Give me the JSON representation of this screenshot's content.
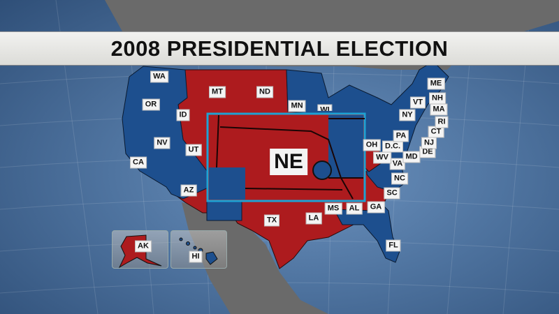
{
  "title": "2008 PRESIDENTIAL ELECTION",
  "colors": {
    "democrat": "#1d4f8e",
    "republican": "#ad1b1e",
    "inset_border": "#1ea2d3",
    "land": "#6a6a6a"
  },
  "inset": {
    "label": "NE",
    "party": "republican",
    "district_party": "democrat"
  },
  "states": [
    {
      "abbr": "WA",
      "party": "democrat"
    },
    {
      "abbr": "OR",
      "party": "democrat"
    },
    {
      "abbr": "ID",
      "party": "republican"
    },
    {
      "abbr": "MT",
      "party": "republican"
    },
    {
      "abbr": "ND",
      "party": "republican"
    },
    {
      "abbr": "MN",
      "party": "democrat"
    },
    {
      "abbr": "WI",
      "party": "democrat"
    },
    {
      "abbr": "NV",
      "party": "democrat"
    },
    {
      "abbr": "UT",
      "party": "republican"
    },
    {
      "abbr": "CA",
      "party": "democrat"
    },
    {
      "abbr": "AZ",
      "party": "republican"
    },
    {
      "abbr": "TX",
      "party": "republican"
    },
    {
      "abbr": "LA",
      "party": "republican"
    },
    {
      "abbr": "MS",
      "party": "republican"
    },
    {
      "abbr": "AL",
      "party": "republican"
    },
    {
      "abbr": "GA",
      "party": "republican"
    },
    {
      "abbr": "SC",
      "party": "republican"
    },
    {
      "abbr": "FL",
      "party": "democrat"
    },
    {
      "abbr": "NC",
      "party": "democrat"
    },
    {
      "abbr": "VA",
      "party": "democrat"
    },
    {
      "abbr": "WV",
      "party": "republican"
    },
    {
      "abbr": "OH",
      "party": "democrat"
    },
    {
      "abbr": "D.C.",
      "party": "democrat"
    },
    {
      "abbr": "MD",
      "party": "democrat"
    },
    {
      "abbr": "PA",
      "party": "democrat"
    },
    {
      "abbr": "DE",
      "party": "democrat"
    },
    {
      "abbr": "NJ",
      "party": "democrat"
    },
    {
      "abbr": "CT",
      "party": "democrat"
    },
    {
      "abbr": "RI",
      "party": "democrat"
    },
    {
      "abbr": "MA",
      "party": "democrat"
    },
    {
      "abbr": "NH",
      "party": "democrat"
    },
    {
      "abbr": "VT",
      "party": "democrat"
    },
    {
      "abbr": "NY",
      "party": "democrat"
    },
    {
      "abbr": "ME",
      "party": "democrat"
    },
    {
      "abbr": "AK",
      "party": "republican"
    },
    {
      "abbr": "HI",
      "party": "democrat"
    }
  ]
}
